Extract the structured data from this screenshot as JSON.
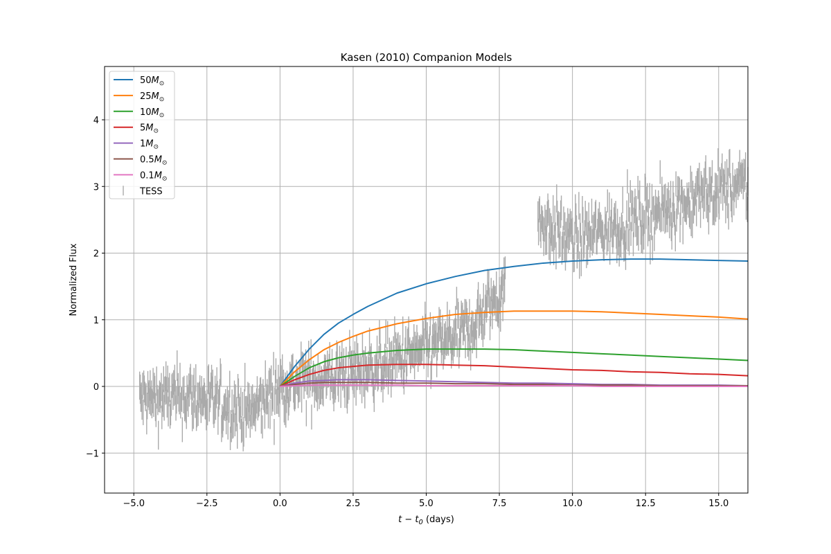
{
  "chart_data": {
    "type": "line",
    "title": "Kasen (2010) Companion Models",
    "xlabel_var": "t − t",
    "xlabel_sub": "0",
    "xlabel_unit": " (days)",
    "ylabel": "Normalized Flux",
    "xlim": [
      -6.0,
      16.0
    ],
    "ylim": [
      -1.6,
      4.8
    ],
    "xticks": [
      -5.0,
      -2.5,
      0.0,
      2.5,
      5.0,
      7.5,
      10.0,
      12.5,
      15.0
    ],
    "xtick_labels": [
      "−5.0",
      "−2.5",
      "0.0",
      "2.5",
      "5.0",
      "7.5",
      "10.0",
      "12.5",
      "15.0"
    ],
    "yticks": [
      -1,
      0,
      1,
      2,
      3,
      4
    ],
    "ytick_labels": [
      "−1",
      "0",
      "1",
      "2",
      "3",
      "4"
    ],
    "grid": true,
    "legend_position": "top-left",
    "model_time_range": [
      0.0,
      16.0
    ],
    "series": [
      {
        "name_num": "50",
        "color": "#1f77b4",
        "x": [
          0,
          0.5,
          1,
          1.5,
          2,
          2.5,
          3,
          4,
          5,
          6,
          7,
          8,
          9,
          10,
          11,
          12,
          13,
          14,
          15,
          16
        ],
        "y": [
          0.0,
          0.3,
          0.56,
          0.78,
          0.95,
          1.08,
          1.2,
          1.4,
          1.54,
          1.65,
          1.74,
          1.8,
          1.85,
          1.88,
          1.9,
          1.91,
          1.91,
          1.9,
          1.89,
          1.88
        ]
      },
      {
        "name_num": "25",
        "color": "#ff7f0e",
        "x": [
          0,
          0.5,
          1,
          1.5,
          2,
          2.5,
          3,
          4,
          5,
          6,
          7,
          8,
          9,
          10,
          11,
          12,
          13,
          14,
          15,
          16
        ],
        "y": [
          0.0,
          0.22,
          0.4,
          0.55,
          0.66,
          0.75,
          0.83,
          0.94,
          1.02,
          1.08,
          1.11,
          1.13,
          1.13,
          1.13,
          1.12,
          1.1,
          1.08,
          1.06,
          1.04,
          1.01
        ]
      },
      {
        "name_num": "10",
        "color": "#2ca02c",
        "x": [
          0,
          0.5,
          1,
          1.5,
          2,
          2.5,
          3,
          4,
          5,
          6,
          7,
          8,
          9,
          10,
          11,
          12,
          13,
          14,
          15,
          16
        ],
        "y": [
          0.0,
          0.15,
          0.28,
          0.37,
          0.43,
          0.47,
          0.5,
          0.54,
          0.56,
          0.56,
          0.56,
          0.55,
          0.53,
          0.51,
          0.49,
          0.47,
          0.45,
          0.43,
          0.41,
          0.39
        ]
      },
      {
        "name_num": "5",
        "color": "#d62728",
        "x": [
          0,
          0.5,
          1,
          1.5,
          2,
          2.5,
          3,
          4,
          5,
          6,
          7,
          8,
          9,
          10,
          11,
          12,
          13,
          14,
          15,
          16
        ],
        "y": [
          0.0,
          0.1,
          0.18,
          0.24,
          0.28,
          0.3,
          0.32,
          0.33,
          0.33,
          0.32,
          0.31,
          0.29,
          0.27,
          0.25,
          0.24,
          0.22,
          0.21,
          0.19,
          0.18,
          0.16
        ]
      },
      {
        "name_num": "1",
        "color": "#9467bd",
        "x": [
          0,
          0.5,
          1,
          1.5,
          2,
          2.5,
          3,
          4,
          5,
          6,
          7,
          8,
          9,
          10,
          11,
          12,
          13,
          14,
          15,
          16
        ],
        "y": [
          0.0,
          0.05,
          0.08,
          0.09,
          0.1,
          0.1,
          0.1,
          0.09,
          0.08,
          0.07,
          0.06,
          0.05,
          0.05,
          0.04,
          0.03,
          0.03,
          0.02,
          0.02,
          0.02,
          0.01
        ]
      },
      {
        "name_num": "0.5",
        "color": "#8c564b",
        "x": [
          0,
          0.5,
          1,
          1.5,
          2,
          2.5,
          3,
          4,
          5,
          6,
          7,
          8,
          9,
          10,
          11,
          12,
          13,
          14,
          15,
          16
        ],
        "y": [
          0.0,
          0.03,
          0.05,
          0.06,
          0.06,
          0.06,
          0.06,
          0.05,
          0.05,
          0.04,
          0.04,
          0.03,
          0.03,
          0.02,
          0.02,
          0.02,
          0.01,
          0.01,
          0.01,
          0.01
        ]
      },
      {
        "name_num": "0.1",
        "color": "#e377c2",
        "x": [
          0,
          0.5,
          1,
          1.5,
          2,
          2.5,
          3,
          4,
          5,
          6,
          7,
          8,
          9,
          10,
          11,
          12,
          13,
          14,
          15,
          16
        ],
        "y": [
          0.0,
          0.01,
          0.02,
          0.02,
          0.02,
          0.02,
          0.02,
          0.02,
          0.01,
          0.01,
          0.01,
          0.01,
          0.01,
          0.01,
          0.0,
          0.0,
          0.0,
          0.0,
          0.0,
          0.0
        ]
      }
    ],
    "data_series": {
      "name": "TESS",
      "color": "#aaaaaa",
      "x_range": [
        -4.8,
        16.0
      ],
      "sample_spacing": 0.02,
      "errorbar_half_height": 0.2,
      "trend": [
        {
          "x": -4.8,
          "y": -0.2
        },
        {
          "x": -3.0,
          "y": -0.15
        },
        {
          "x": -1.0,
          "y": -0.4
        },
        {
          "x": 0.0,
          "y": 0.0
        },
        {
          "x": 2.5,
          "y": 0.2
        },
        {
          "x": 5.0,
          "y": 0.55
        },
        {
          "x": 6.5,
          "y": 0.85
        },
        {
          "x": 7.6,
          "y": 1.45
        },
        {
          "x": 8.8,
          "y": 2.5
        },
        {
          "x": 10.0,
          "y": 2.2
        },
        {
          "x": 12.5,
          "y": 2.55
        },
        {
          "x": 15.0,
          "y": 2.95
        },
        {
          "x": 16.0,
          "y": 3.0
        }
      ],
      "gap": [
        7.7,
        8.8
      ],
      "scatter": 0.3
    }
  }
}
